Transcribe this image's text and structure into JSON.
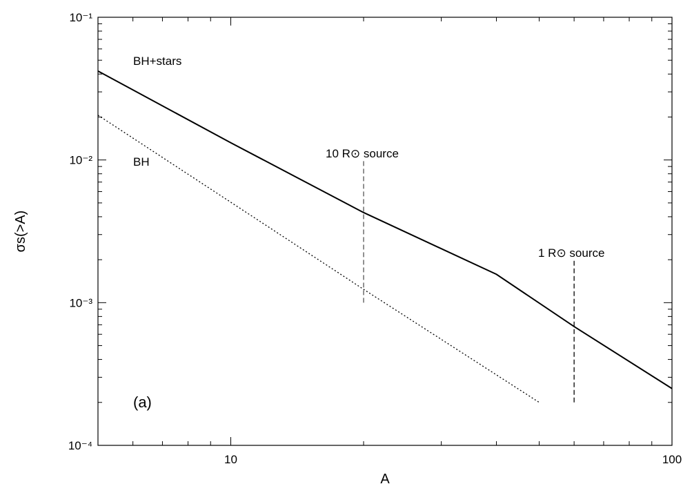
{
  "chart_data": {
    "type": "line",
    "log_x": true,
    "log_y": true,
    "xlabel": "A",
    "ylabel": "σs(>A)",
    "xlim": [
      5,
      100
    ],
    "ylim": [
      0.0001,
      0.1
    ],
    "xticks": [
      10,
      100
    ],
    "xminorticks": [
      5,
      6,
      7,
      8,
      9,
      20,
      30,
      40,
      50,
      60,
      70,
      80,
      90
    ],
    "yticks": [
      {
        "value": 0.0001,
        "label": "10⁻⁴"
      },
      {
        "value": 0.001,
        "label": "10⁻³"
      },
      {
        "value": 0.01,
        "label": "10⁻²"
      },
      {
        "value": 0.1,
        "label": "10⁻¹"
      }
    ],
    "yminorticks": [
      0.0002,
      0.0003,
      0.0004,
      0.0005,
      0.0006,
      0.0007,
      0.0008,
      0.0009,
      0.002,
      0.003,
      0.004,
      0.005,
      0.006,
      0.007,
      0.008,
      0.009,
      0.02,
      0.03,
      0.04,
      0.05,
      0.06,
      0.07,
      0.08,
      0.09
    ],
    "series": [
      {
        "x": [
          5,
          10,
          20,
          40,
          60,
          100
        ],
        "values": [
          0.042,
          0.0132,
          0.00428,
          0.00158,
          0.00068,
          0.00025
        ],
        "color": "#000000",
        "dash": "solid"
      },
      {
        "x": [
          5,
          20,
          50
        ],
        "values": [
          0.0206,
          0.00124,
          0.0002
        ],
        "color": "#000000",
        "dash": "dotted"
      },
      {
        "x": [
          20,
          20
        ],
        "values": [
          0.001,
          0.01
        ],
        "color": "#555555",
        "dash": "dashed"
      },
      {
        "x": [
          60,
          60
        ],
        "values": [
          0.0002,
          0.002
        ],
        "color": "#000000",
        "dash": "dashed"
      }
    ],
    "annotations": [
      "BH+stars",
      "BH",
      "10 R⊙ source",
      "1 R⊙ source",
      "(a)"
    ]
  }
}
